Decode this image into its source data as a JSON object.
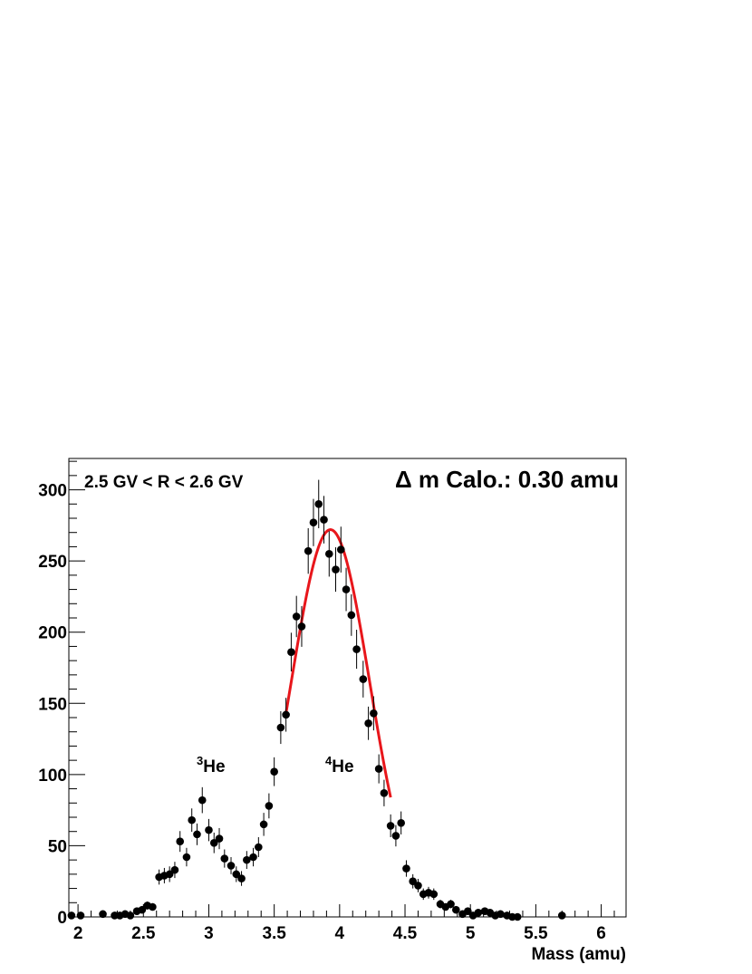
{
  "chart_data": {
    "type": "scatter",
    "xlabel": "Mass (amu)",
    "ylabel": "",
    "xlim": [
      1.93,
      6.19
    ],
    "ylim": [
      0,
      322
    ],
    "x_ticks": [
      2,
      2.5,
      3,
      3.5,
      4,
      4.5,
      5,
      5.5,
      6
    ],
    "x_tick_labels": [
      "2",
      "2.5",
      "3",
      "3.5",
      "4",
      "4.5",
      "5",
      "5.5",
      "6"
    ],
    "y_ticks": [
      0,
      50,
      100,
      150,
      200,
      250,
      300
    ],
    "y_tick_labels": [
      "0",
      "50",
      "100",
      "150",
      "200",
      "250",
      "300"
    ],
    "grid": false,
    "annotations": {
      "rigidity_range": "2.5 GV < R < 2.6 GV",
      "resolution": "Δ m Calo.: 0.30 amu",
      "he3_label": {
        "sup": "3",
        "text": "He",
        "x": 2.98,
        "y": 104
      },
      "he4_label": {
        "sup": "4",
        "text": "He",
        "x": 3.98,
        "y": 104
      }
    },
    "series": [
      {
        "style": "markers-with-error-bars",
        "color": "#000000",
        "x": [
          1.95,
          2.02,
          2.19,
          2.28,
          2.32,
          2.36,
          2.4,
          2.45,
          2.49,
          2.53,
          2.57,
          2.62,
          2.66,
          2.7,
          2.74,
          2.78,
          2.83,
          2.87,
          2.91,
          2.95,
          3.0,
          3.04,
          3.08,
          3.12,
          3.17,
          3.21,
          3.25,
          3.29,
          3.34,
          3.38,
          3.42,
          3.46,
          3.5,
          3.55,
          3.59,
          3.63,
          3.67,
          3.71,
          3.76,
          3.8,
          3.84,
          3.88,
          3.92,
          3.97,
          4.01,
          4.05,
          4.09,
          4.13,
          4.18,
          4.22,
          4.26,
          4.3,
          4.34,
          4.39,
          4.43,
          4.47,
          4.51,
          4.56,
          4.6,
          4.64,
          4.68,
          4.72,
          4.77,
          4.81,
          4.85,
          4.89,
          4.94,
          4.98,
          5.02,
          5.06,
          5.11,
          5.15,
          5.19,
          5.23,
          5.28,
          5.32,
          5.36,
          5.7
        ],
        "y": [
          1,
          1,
          2,
          1,
          1,
          2,
          1,
          4,
          5,
          8,
          7,
          28,
          29,
          30,
          33,
          53,
          42,
          68,
          58,
          82,
          61,
          52,
          55,
          41,
          36,
          30,
          27,
          40,
          42,
          49,
          65,
          78,
          102,
          133,
          142,
          186,
          211,
          204,
          257,
          277,
          290,
          279,
          255,
          244,
          258,
          230,
          212,
          188,
          167,
          136,
          143,
          104,
          87,
          64,
          57,
          66,
          34,
          25,
          22,
          16,
          17,
          16,
          9,
          7,
          9,
          5,
          2,
          4,
          1,
          3,
          4,
          3,
          1,
          2,
          1,
          0,
          0,
          1
        ],
        "err": [
          1,
          1,
          1.4,
          1,
          1,
          1.4,
          1,
          2,
          2.2,
          2.8,
          2.6,
          5.3,
          5.4,
          5.5,
          5.7,
          7.3,
          6.5,
          8.2,
          7.6,
          9.1,
          7.8,
          7.2,
          7.4,
          6.4,
          6,
          5.5,
          5.2,
          6.3,
          6.5,
          7,
          8.1,
          8.8,
          10.1,
          11.5,
          11.9,
          13.6,
          14.5,
          14.3,
          16,
          16.6,
          17,
          16.7,
          16,
          15.6,
          16.1,
          15.2,
          14.6,
          13.7,
          12.9,
          11.7,
          12,
          10.2,
          9.3,
          8,
          7.5,
          8.1,
          5.8,
          5,
          4.7,
          4,
          4.1,
          4,
          3,
          2.6,
          3,
          2.2,
          1.4,
          2,
          1,
          1.7,
          2,
          1.7,
          1,
          1.4,
          1,
          0,
          0,
          1
        ]
      },
      {
        "style": "line",
        "color": "#e8161b",
        "function": "gaussian",
        "amplitude": 272,
        "mean": 3.93,
        "sigma": 0.3,
        "range": [
          3.59,
          4.39
        ]
      }
    ]
  }
}
